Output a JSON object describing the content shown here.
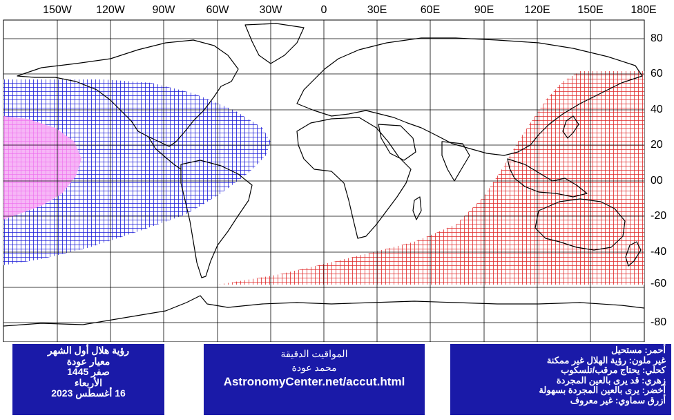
{
  "map": {
    "lon_labels": [
      "150W",
      "120W",
      "90W",
      "60W",
      "30W",
      "0",
      "30E",
      "60E",
      "90E",
      "120E",
      "150E",
      "180E"
    ],
    "lat_labels": [
      "80",
      "60",
      "40",
      "20",
      "00",
      "-20",
      "-40",
      "-60",
      "-80"
    ],
    "colors": {
      "red": "#e02828",
      "blue": "#1a1ad8",
      "magenta": "#f07af0",
      "grid": "#000000",
      "land": "#000000",
      "panel": "#1a1aa8"
    },
    "zones": {
      "red": "impossible-region",
      "blue": "telescope-region",
      "magenta": "naked-eye-region"
    }
  },
  "info_left": {
    "title": "رؤية هلال أول الشهر",
    "criterion": "معيار عودة",
    "month": "صفر 1445",
    "weekday": "الأربعاء",
    "date": "16 أغسطس 2023"
  },
  "info_mid": {
    "title": "المواقيت الدقيقة",
    "author": "محمد عودة",
    "url": "AstronomyCenter.net/accut.html"
  },
  "legend": {
    "items": [
      "أحمر: مستحيل",
      "غير ملون: رؤية الهلال غير ممكنة",
      "كحلي: يحتاج مرقب/تلسكوب",
      "زهري: قد يرى بالعين المجردة",
      "أخضر: يرى بالعين المجردة بسهولة",
      "أزرق سماوي: غير معروف"
    ]
  }
}
